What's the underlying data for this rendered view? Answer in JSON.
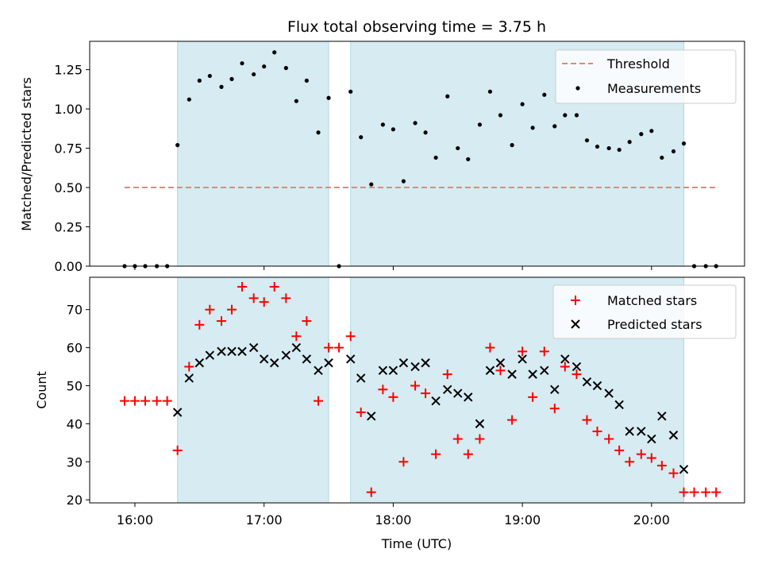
{
  "chart_data": {
    "type": "scatter",
    "title": "Flux total observing time = 3.75 h",
    "xlabel": "Time (UTC)",
    "xticks": [
      "16:00",
      "17:00",
      "18:00",
      "19:00",
      "20:00"
    ],
    "xlim_hours": [
      15.65,
      20.72
    ],
    "shaded_intervals_hours": [
      [
        16.33,
        17.5
      ],
      [
        17.67,
        20.25
      ]
    ],
    "shade_color": "#add8e6",
    "top": {
      "ylabel": "Matched/Predicted stars",
      "ylim": [
        0,
        1.43
      ],
      "yticks": [
        "0.00",
        "0.25",
        "0.50",
        "0.75",
        "1.00",
        "1.25"
      ],
      "threshold": {
        "name": "Threshold",
        "value": 0.5,
        "x_range": [
          15.92,
          20.5
        ],
        "color": "#f08080"
      },
      "series": [
        {
          "name": "Measurements",
          "color": "#000000",
          "x": [
            15.92,
            16.0,
            16.08,
            16.17,
            16.25,
            16.33,
            16.42,
            16.5,
            16.58,
            16.67,
            16.75,
            16.83,
            16.92,
            17.0,
            17.08,
            17.17,
            17.25,
            17.33,
            17.42,
            17.5,
            17.58,
            17.67,
            17.75,
            17.83,
            17.92,
            18.0,
            18.08,
            18.17,
            18.25,
            18.33,
            18.42,
            18.5,
            18.58,
            18.67,
            18.75,
            18.83,
            18.92,
            19.0,
            19.08,
            19.17,
            19.25,
            19.33,
            19.42,
            19.5,
            19.58,
            19.67,
            19.75,
            19.83,
            19.92,
            20.0,
            20.08,
            20.17,
            20.25,
            20.33,
            20.42,
            20.5
          ],
          "values": [
            0,
            0,
            0,
            0,
            0,
            0.77,
            1.06,
            1.18,
            1.21,
            1.14,
            1.19,
            1.29,
            1.22,
            1.27,
            1.36,
            1.26,
            1.05,
            1.18,
            0.85,
            1.07,
            0,
            1.11,
            0.82,
            0.52,
            0.9,
            0.87,
            0.54,
            0.91,
            0.85,
            0.69,
            1.08,
            0.75,
            0.68,
            0.9,
            1.11,
            0.96,
            0.77,
            1.03,
            0.88,
            1.09,
            0.89,
            0.96,
            0.96,
            0.8,
            0.76,
            0.75,
            0.74,
            0.79,
            0.84,
            0.86,
            0.69,
            0.73,
            0.78,
            0,
            0,
            0
          ]
        }
      ]
    },
    "bottom": {
      "ylabel": "Count",
      "ylim": [
        19.2,
        78.5
      ],
      "yticks": [
        "20",
        "30",
        "40",
        "50",
        "60",
        "70"
      ],
      "series": [
        {
          "name": "Matched stars",
          "color": "#ff0000",
          "marker": "plus",
          "x": [
            15.92,
            16.0,
            16.08,
            16.17,
            16.25,
            16.33,
            16.42,
            16.5,
            16.58,
            16.67,
            16.75,
            16.83,
            16.92,
            17.0,
            17.08,
            17.17,
            17.25,
            17.33,
            17.42,
            17.5,
            17.58,
            17.67,
            17.75,
            17.83,
            17.92,
            18.0,
            18.08,
            18.17,
            18.25,
            18.33,
            18.42,
            18.5,
            18.58,
            18.67,
            18.75,
            18.83,
            18.92,
            19.0,
            19.08,
            19.17,
            19.25,
            19.33,
            19.42,
            19.5,
            19.58,
            19.67,
            19.75,
            19.83,
            19.92,
            20.0,
            20.08,
            20.17,
            20.25,
            20.33,
            20.42,
            20.5
          ],
          "values": [
            46,
            46,
            46,
            46,
            46,
            33,
            55,
            66,
            70,
            67,
            70,
            76,
            73,
            72,
            76,
            73,
            63,
            67,
            46,
            60,
            60,
            63,
            43,
            22,
            49,
            47,
            30,
            50,
            48,
            32,
            53,
            36,
            32,
            36,
            60,
            54,
            41,
            59,
            47,
            59,
            44,
            55,
            53,
            41,
            38,
            36,
            33,
            30,
            32,
            31,
            29,
            27,
            22,
            22,
            22,
            22
          ]
        },
        {
          "name": "Predicted stars",
          "color": "#000000",
          "marker": "x",
          "x": [
            16.33,
            16.42,
            16.5,
            16.58,
            16.67,
            16.75,
            16.83,
            16.92,
            17.0,
            17.08,
            17.17,
            17.25,
            17.33,
            17.42,
            17.5,
            17.67,
            17.75,
            17.83,
            17.92,
            18.0,
            18.08,
            18.17,
            18.25,
            18.33,
            18.42,
            18.5,
            18.58,
            18.67,
            18.75,
            18.83,
            18.92,
            19.0,
            19.08,
            19.17,
            19.25,
            19.33,
            19.42,
            19.5,
            19.58,
            19.67,
            19.75,
            19.83,
            19.92,
            20.0,
            20.08,
            20.17,
            20.25
          ],
          "values": [
            43,
            52,
            56,
            58,
            59,
            59,
            59,
            60,
            57,
            56,
            58,
            60,
            57,
            54,
            56,
            57,
            52,
            42,
            54,
            54,
            56,
            55,
            56,
            46,
            49,
            48,
            47,
            40,
            54,
            56,
            53,
            57,
            53,
            54,
            49,
            57,
            55,
            51,
            50,
            48,
            45,
            38,
            38,
            36,
            42,
            37,
            28
          ]
        }
      ]
    }
  }
}
